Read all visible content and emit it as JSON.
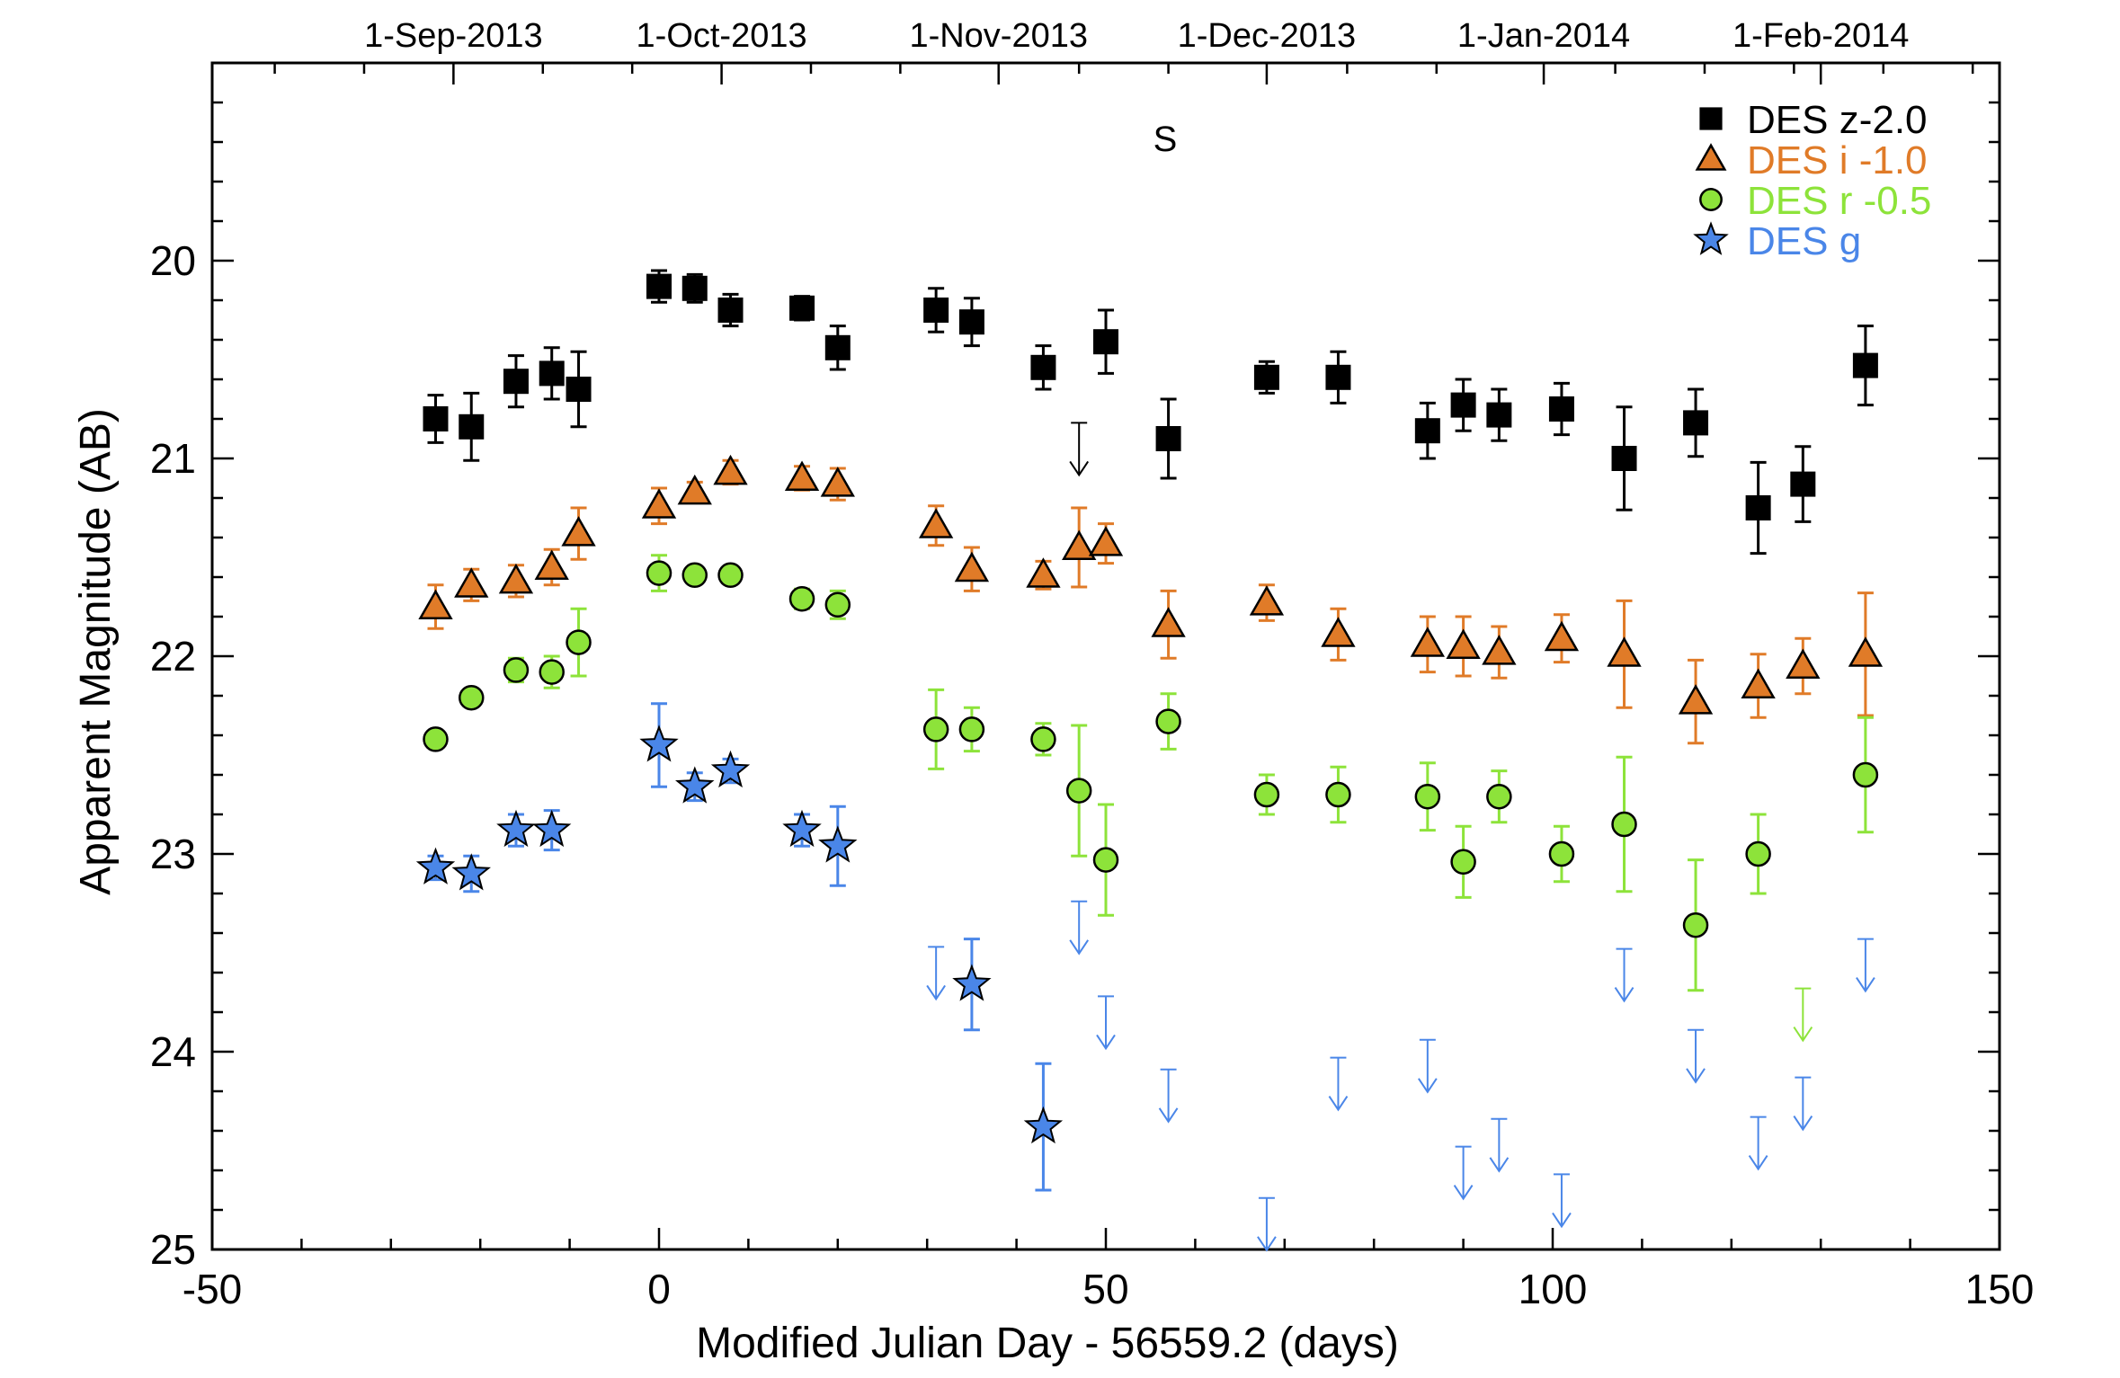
{
  "chart_data": {
    "type": "scatter",
    "title": "S",
    "xlabel": "Modified Julian Day - 56559.2 (days)",
    "ylabel": "Apparent Magnitude (AB)",
    "xlim": [
      -50,
      150
    ],
    "ylim": [
      25,
      19
    ],
    "y_inverted": true,
    "xticks": [
      -50,
      0,
      50,
      100,
      150
    ],
    "yticks": [
      20,
      21,
      22,
      23,
      24,
      25
    ],
    "top_axis_ticks": [
      {
        "x": -23,
        "label": "1-Sep-2013"
      },
      {
        "x": 7,
        "label": "1-Oct-2013"
      },
      {
        "x": 38,
        "label": "1-Nov-2013"
      },
      {
        "x": 68,
        "label": "1-Dec-2013"
      },
      {
        "x": 99,
        "label": "1-Jan-2014"
      },
      {
        "x": 130,
        "label": "1-Feb-2014"
      }
    ],
    "legend_position": "top-right",
    "grid": false,
    "series": [
      {
        "name": "DES z-2.0",
        "marker": "square",
        "color": "#000000",
        "points": [
          {
            "x": -25,
            "y": 20.8,
            "err": 0.12
          },
          {
            "x": -21,
            "y": 20.84,
            "err": 0.17
          },
          {
            "x": -16,
            "y": 20.61,
            "err": 0.13
          },
          {
            "x": -12,
            "y": 20.57,
            "err": 0.13
          },
          {
            "x": -9,
            "y": 20.65,
            "err": 0.19
          },
          {
            "x": 0,
            "y": 20.13,
            "err": 0.08
          },
          {
            "x": 4,
            "y": 20.14,
            "err": 0.07
          },
          {
            "x": 8,
            "y": 20.25,
            "err": 0.08
          },
          {
            "x": 16,
            "y": 20.24,
            "err": 0.06
          },
          {
            "x": 20,
            "y": 20.44,
            "err": 0.11
          },
          {
            "x": 31,
            "y": 20.25,
            "err": 0.11
          },
          {
            "x": 35,
            "y": 20.31,
            "err": 0.12
          },
          {
            "x": 43,
            "y": 20.54,
            "err": 0.11
          },
          {
            "x": 50,
            "y": 20.41,
            "err": 0.16
          },
          {
            "x": 57,
            "y": 20.9,
            "err": 0.2
          },
          {
            "x": 68,
            "y": 20.59,
            "err": 0.08
          },
          {
            "x": 76,
            "y": 20.59,
            "err": 0.13
          },
          {
            "x": 86,
            "y": 20.86,
            "err": 0.14
          },
          {
            "x": 90,
            "y": 20.73,
            "err": 0.13
          },
          {
            "x": 94,
            "y": 20.78,
            "err": 0.13
          },
          {
            "x": 101,
            "y": 20.75,
            "err": 0.13
          },
          {
            "x": 108,
            "y": 21.0,
            "err": 0.26
          },
          {
            "x": 116,
            "y": 20.82,
            "err": 0.17
          },
          {
            "x": 123,
            "y": 21.25,
            "err": 0.23
          },
          {
            "x": 128,
            "y": 21.13,
            "err": 0.19
          },
          {
            "x": 135,
            "y": 20.53,
            "err": 0.2
          }
        ],
        "upper_limits": [
          {
            "x": 47,
            "y": 20.82
          }
        ]
      },
      {
        "name": "DES i -1.0",
        "marker": "triangle",
        "color": "#e07b28",
        "points": [
          {
            "x": -25,
            "y": 21.75,
            "err": 0.11
          },
          {
            "x": -21,
            "y": 21.64,
            "err": 0.08
          },
          {
            "x": -16,
            "y": 21.62,
            "err": 0.08
          },
          {
            "x": -12,
            "y": 21.55,
            "err": 0.09
          },
          {
            "x": -9,
            "y": 21.38,
            "err": 0.13
          },
          {
            "x": 0,
            "y": 21.24,
            "err": 0.09
          },
          {
            "x": 4,
            "y": 21.17,
            "err": 0.05
          },
          {
            "x": 8,
            "y": 21.07,
            "err": 0.06
          },
          {
            "x": 16,
            "y": 21.1,
            "err": 0.06
          },
          {
            "x": 20,
            "y": 21.13,
            "err": 0.08
          },
          {
            "x": 31,
            "y": 21.34,
            "err": 0.1
          },
          {
            "x": 35,
            "y": 21.56,
            "err": 0.11
          },
          {
            "x": 43,
            "y": 21.59,
            "err": 0.07
          },
          {
            "x": 47,
            "y": 21.45,
            "err": 0.2
          },
          {
            "x": 50,
            "y": 21.43,
            "err": 0.1
          },
          {
            "x": 57,
            "y": 21.84,
            "err": 0.17
          },
          {
            "x": 68,
            "y": 21.73,
            "err": 0.09
          },
          {
            "x": 76,
            "y": 21.89,
            "err": 0.13
          },
          {
            "x": 86,
            "y": 21.94,
            "err": 0.14
          },
          {
            "x": 90,
            "y": 21.95,
            "err": 0.15
          },
          {
            "x": 94,
            "y": 21.98,
            "err": 0.13
          },
          {
            "x": 101,
            "y": 21.91,
            "err": 0.12
          },
          {
            "x": 108,
            "y": 21.99,
            "err": 0.27
          },
          {
            "x": 116,
            "y": 22.23,
            "err": 0.21
          },
          {
            "x": 123,
            "y": 22.15,
            "err": 0.16
          },
          {
            "x": 128,
            "y": 22.05,
            "err": 0.14
          },
          {
            "x": 135,
            "y": 21.99,
            "err": 0.31
          }
        ],
        "upper_limits": []
      },
      {
        "name": "DES r -0.5",
        "marker": "circle",
        "color": "#8de33a",
        "points": [
          {
            "x": -25,
            "y": 22.42,
            "err": 0.04
          },
          {
            "x": -21,
            "y": 22.21,
            "err": 0.04
          },
          {
            "x": -16,
            "y": 22.07,
            "err": 0.06
          },
          {
            "x": -12,
            "y": 22.08,
            "err": 0.08
          },
          {
            "x": -9,
            "y": 21.93,
            "err": 0.17
          },
          {
            "x": 0,
            "y": 21.58,
            "err": 0.09
          },
          {
            "x": 4,
            "y": 21.59,
            "err": 0.04
          },
          {
            "x": 8,
            "y": 21.59,
            "err": 0.04
          },
          {
            "x": 16,
            "y": 21.71,
            "err": 0.05
          },
          {
            "x": 20,
            "y": 21.74,
            "err": 0.07
          },
          {
            "x": 31,
            "y": 22.37,
            "err": 0.2
          },
          {
            "x": 35,
            "y": 22.37,
            "err": 0.11
          },
          {
            "x": 43,
            "y": 22.42,
            "err": 0.08
          },
          {
            "x": 47,
            "y": 22.68,
            "err": 0.33
          },
          {
            "x": 50,
            "y": 23.03,
            "err": 0.28
          },
          {
            "x": 57,
            "y": 22.33,
            "err": 0.14
          },
          {
            "x": 68,
            "y": 22.7,
            "err": 0.1
          },
          {
            "x": 76,
            "y": 22.7,
            "err": 0.14
          },
          {
            "x": 86,
            "y": 22.71,
            "err": 0.17
          },
          {
            "x": 90,
            "y": 23.04,
            "err": 0.18
          },
          {
            "x": 94,
            "y": 22.71,
            "err": 0.13
          },
          {
            "x": 101,
            "y": 23.0,
            "err": 0.14
          },
          {
            "x": 108,
            "y": 22.85,
            "err": 0.34
          },
          {
            "x": 116,
            "y": 23.36,
            "err": 0.33
          },
          {
            "x": 123,
            "y": 23.0,
            "err": 0.2
          },
          {
            "x": 135,
            "y": 22.6,
            "err": 0.29
          }
        ],
        "upper_limits": [
          {
            "x": 128,
            "y": 23.68
          }
        ]
      },
      {
        "name": "DES g",
        "marker": "star",
        "color": "#4a86e8",
        "points": [
          {
            "x": -25,
            "y": 23.07,
            "err": 0.06
          },
          {
            "x": -21,
            "y": 23.1,
            "err": 0.09
          },
          {
            "x": -16,
            "y": 22.88,
            "err": 0.08
          },
          {
            "x": -12,
            "y": 22.88,
            "err": 0.1
          },
          {
            "x": 0,
            "y": 22.45,
            "err": 0.21
          },
          {
            "x": 4,
            "y": 22.66,
            "err": 0.07
          },
          {
            "x": 8,
            "y": 22.58,
            "err": 0.06
          },
          {
            "x": 16,
            "y": 22.88,
            "err": 0.08
          },
          {
            "x": 20,
            "y": 22.96,
            "err": 0.2
          },
          {
            "x": 35,
            "y": 23.66,
            "err": 0.23
          },
          {
            "x": 43,
            "y": 24.38,
            "err": 0.32
          }
        ],
        "upper_limits": [
          {
            "x": 31,
            "y": 23.47
          },
          {
            "x": 47,
            "y": 23.24
          },
          {
            "x": 50,
            "y": 23.72
          },
          {
            "x": 57,
            "y": 24.09
          },
          {
            "x": 68,
            "y": 24.74
          },
          {
            "x": 76,
            "y": 24.03
          },
          {
            "x": 86,
            "y": 23.94
          },
          {
            "x": 90,
            "y": 24.48
          },
          {
            "x": 94,
            "y": 24.34
          },
          {
            "x": 101,
            "y": 24.62
          },
          {
            "x": 108,
            "y": 23.48
          },
          {
            "x": 116,
            "y": 23.89
          },
          {
            "x": 123,
            "y": 24.33
          },
          {
            "x": 128,
            "y": 24.13
          },
          {
            "x": 135,
            "y": 23.43
          }
        ]
      }
    ]
  }
}
